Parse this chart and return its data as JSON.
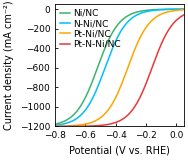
{
  "title": "",
  "xlabel": "Potential (V vs. RHE)",
  "ylabel": "Current density (mA cm⁻²)",
  "xlim": [
    -0.8,
    0.05
  ],
  "ylim": [
    -1200,
    50
  ],
  "xticks": [
    -0.8,
    -0.6,
    -0.4,
    -0.2,
    0.0
  ],
  "yticks": [
    0,
    -200,
    -400,
    -600,
    -800,
    -1000,
    -1200
  ],
  "curves": [
    {
      "label": "Ni/NC",
      "color": "#3cb371",
      "onset": -0.46,
      "half_wave": -0.52,
      "steepness": 14
    },
    {
      "label": "N-Ni/NC",
      "color": "#00bfff",
      "onset": -0.4,
      "half_wave": -0.47,
      "steepness": 14
    },
    {
      "label": "Pt-Ni/NC",
      "color": "#ffa500",
      "onset": -0.25,
      "half_wave": -0.32,
      "steepness": 14
    },
    {
      "label": "Pt-N-Ni/NC",
      "color": "#e8393a",
      "onset": -0.09,
      "half_wave": -0.16,
      "steepness": 14
    }
  ],
  "background_color": "#ffffff",
  "legend_fontsize": 6.5,
  "axis_fontsize": 7,
  "tick_fontsize": 6.5,
  "linewidth": 1.1
}
